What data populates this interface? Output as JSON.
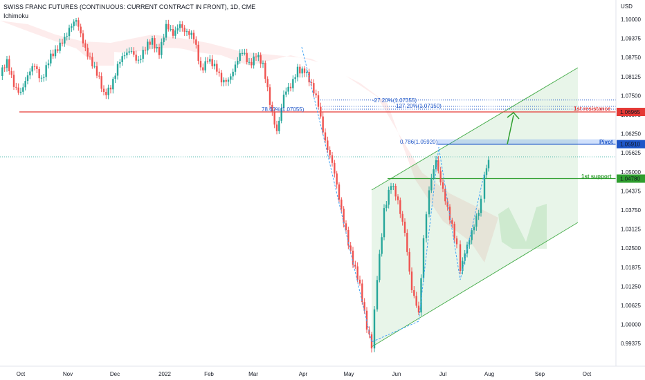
{
  "header": {
    "title": "SWISS FRANC FUTURES (CONTINUOUS: CURRENT CONTRACT IN FRONT), 1D, CME",
    "indicator": "Ichimoku"
  },
  "chart_data": {
    "type": "candlestick",
    "currency": "USD",
    "y_ticks": [
      "1.10000",
      "1.09375",
      "1.08750",
      "1.08125",
      "1.07500",
      "1.06875",
      "1.06250",
      "1.05625",
      "1.05000",
      "1.04375",
      "1.03750",
      "1.03125",
      "1.02500",
      "1.01875",
      "1.01250",
      "1.00625",
      "1.00000",
      "0.99375"
    ],
    "ylim": [
      0.99,
      1.105
    ],
    "x_ticks": [
      "Oct",
      "Nov",
      "Dec",
      "2022",
      "Feb",
      "Mar",
      "Apr",
      "May",
      "Jun",
      "Jul",
      "Aug",
      "Sep",
      "Oct"
    ],
    "price_badges": [
      {
        "value": "1.06965",
        "color": "#e53935"
      },
      {
        "value": "1.05910",
        "color": "#1e56c8"
      },
      {
        "value": "1.04780",
        "color": "#2e9e2e"
      }
    ],
    "levels": [
      {
        "label": "1st resistance",
        "value": 1.06965,
        "color": "#e53935"
      },
      {
        "label": "Pivot",
        "value": 1.0591,
        "color": "#1e56c8"
      },
      {
        "label": "1st support",
        "value": 1.0478,
        "color": "#2e9e2e"
      }
    ],
    "fib_labels": [
      {
        "text": "78.60%(1.07055)",
        "value": 1.07055
      },
      {
        "text": "0.786(1.05920)",
        "value": 1.0592
      },
      {
        "text": "-27.20%(1.07355)",
        "value": 1.07355
      },
      {
        "text": "127.20%(1.07150)",
        "value": 1.0715
      }
    ]
  }
}
